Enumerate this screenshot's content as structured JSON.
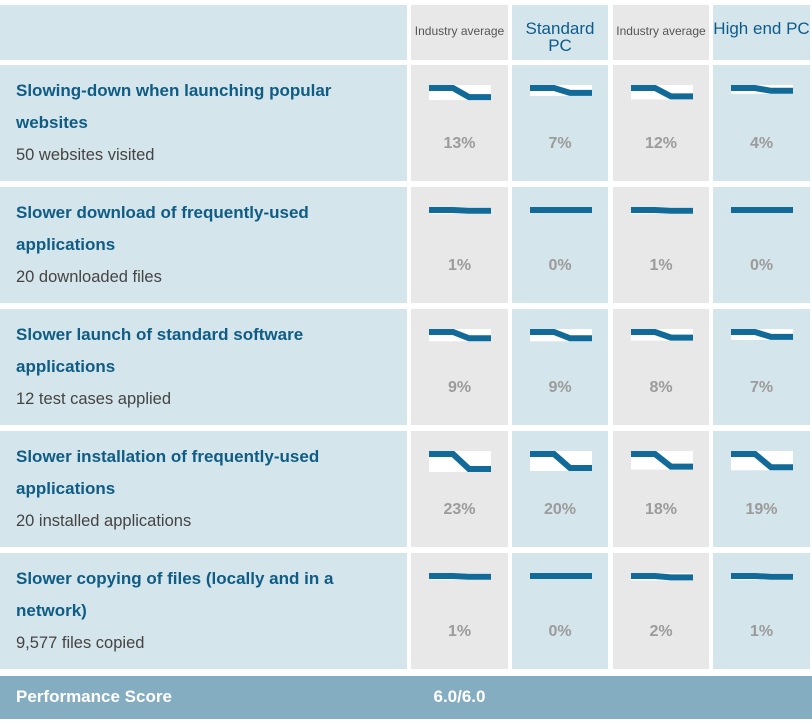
{
  "header": {
    "columns": [
      {
        "label": "Industry average",
        "style": "small"
      },
      {
        "label": "Standard PC",
        "style": "big"
      },
      {
        "label": "Industry average",
        "style": "small"
      },
      {
        "label": "High end PC",
        "style": "big"
      }
    ]
  },
  "colors": {
    "line": "#116a98",
    "gray_cell": "#e8e8e8",
    "blue_cell": "#d5e5ec",
    "title_text": "#0f5c84",
    "score_bar": "#84adc1"
  },
  "tests": [
    {
      "title": "Slowing-down when launching popular websites",
      "subtitle": "50 websites visited",
      "values": [
        "13%",
        "7%",
        "12%",
        "4%"
      ],
      "slowdown_pct": [
        13,
        7,
        12,
        4
      ]
    },
    {
      "title": "Slower download of frequently-used applications",
      "subtitle": "20 downloaded files",
      "values": [
        "1%",
        "0%",
        "1%",
        "0%"
      ],
      "slowdown_pct": [
        1,
        0,
        1,
        0
      ]
    },
    {
      "title": "Slower launch of standard software applications",
      "subtitle": "12 test cases applied",
      "values": [
        "9%",
        "9%",
        "8%",
        "7%"
      ],
      "slowdown_pct": [
        9,
        9,
        8,
        7
      ]
    },
    {
      "title": "Slower installation of frequently-used applications",
      "subtitle": "20 installed applications",
      "values": [
        "23%",
        "20%",
        "18%",
        "19%"
      ],
      "slowdown_pct": [
        23,
        20,
        18,
        19
      ]
    },
    {
      "title": "Slower copying of files (locally and in a network)",
      "subtitle": "9,577 files copied",
      "values": [
        "1%",
        "0%",
        "2%",
        "1%"
      ],
      "slowdown_pct": [
        1,
        0,
        2,
        1
      ]
    }
  ],
  "score": {
    "label": "Performance Score",
    "value": "6.0/6.0"
  }
}
